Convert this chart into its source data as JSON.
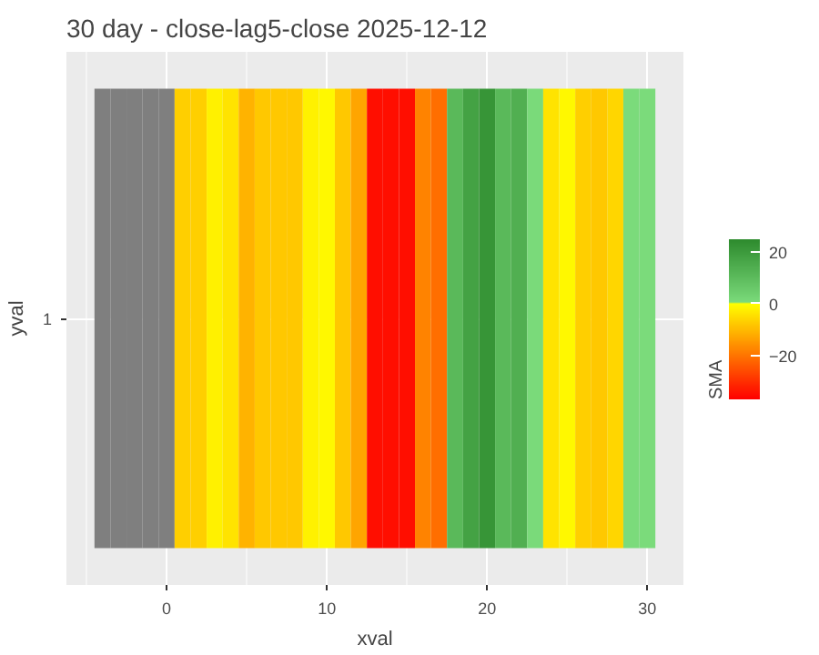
{
  "chart_data": {
    "type": "heatmap",
    "title": "30 day - close-lag5-close  2025-12-12",
    "xlabel": "xval",
    "ylabel": "yval",
    "clabel": "SMA",
    "x": [
      -4,
      -3,
      -2,
      -1,
      0,
      1,
      2,
      3,
      4,
      5,
      6,
      7,
      8,
      9,
      10,
      11,
      12,
      13,
      14,
      15,
      16,
      17,
      18,
      19,
      20,
      21,
      22,
      23,
      24,
      25,
      26,
      27,
      28,
      29,
      30
    ],
    "y_categories": [
      "1"
    ],
    "cells": [
      [
        null,
        null,
        null,
        null,
        null,
        -7,
        -7,
        -2,
        -4,
        -11,
        -8,
        -8,
        -8,
        -2,
        -1,
        -8,
        -13,
        -35,
        -35,
        -35,
        -18,
        -21,
        11,
        18,
        22,
        11,
        14,
        1,
        -4,
        -1,
        -7,
        -8,
        -6,
        0.5,
        0.5
      ]
    ],
    "clim": [
      -37,
      25
    ],
    "cticks": [
      -20,
      0,
      20
    ],
    "xlim": [
      -6.25,
      32.25
    ],
    "xticks": [
      0,
      10,
      20,
      30
    ],
    "grid": true
  }
}
